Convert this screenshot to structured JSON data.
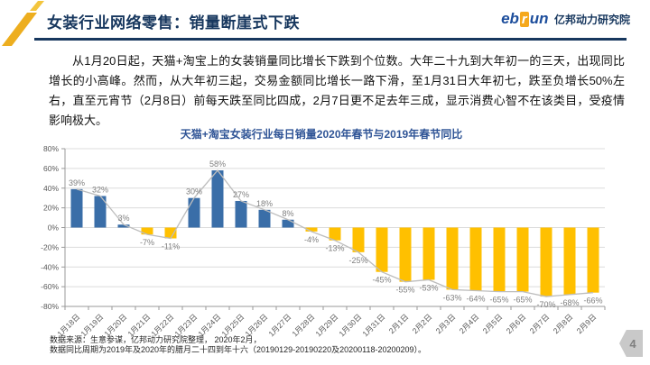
{
  "header": {
    "title": "女装行业网络零售：销量断崖式下跌",
    "logo": {
      "eb": "eb",
      "r": "r",
      "un": "un",
      "cn": "亿邦动力研究院"
    }
  },
  "body_paragraph": "从1月20日起，天猫+淘宝上的女装销量同比增长下跌到个位数。大年二十九到大年初一的三天，出现同比增长的小高峰。然而，从大年初三起，交易金额同比增长一路下滑，至1月31日大年初七，跌至负增长50%左右，直至元宵节（2月8日）前每天跌至同比四成，2月7日更不足去年三成，显示消费心智不在该类目，受疫情影响极大。",
  "chart_data": {
    "type": "bar",
    "title": "天猫+淘宝女装行业每日销量2020年春节与2019年春节同比",
    "categories": [
      "1月18日",
      "1月19日",
      "1月20日",
      "1月21日",
      "1月22日",
      "1月23日",
      "1月24日",
      "1月25日",
      "1月26日",
      "1月27日",
      "1月28日",
      "1月29日",
      "1月30日",
      "1月31日",
      "2月1日",
      "2月2日",
      "2月3日",
      "2月4日",
      "2月5日",
      "2月6日",
      "2月7日",
      "2月8日",
      "2月9日"
    ],
    "values": [
      39,
      32,
      3,
      -7,
      -11,
      30,
      58,
      27,
      18,
      8,
      -4,
      -13,
      -25,
      -45,
      -55,
      -53,
      -63,
      -64,
      -65,
      -65,
      -70,
      -68,
      -66
    ],
    "xlabel": "",
    "ylabel": "",
    "ylim": [
      -80,
      80
    ],
    "ytick_step": 20,
    "ytick_suffix": "%",
    "grid": true,
    "legend": "none",
    "positive_color": "#3A6EA8",
    "negative_color": "#FFC000",
    "line_color": "#BDBDBD",
    "grid_color": "#DCDCDC",
    "axis_color": "#999999",
    "data_label_color": "#7F7F7F",
    "tick_label_color": "#595959"
  },
  "footer": {
    "line1": "数据来源：生意参谋，亿邦动力研究院整理， 2020年2月，",
    "line2": "数据同比周期为2019年及2020年的腊月二十四到年十六（20190129-20190220及20200118-20200209）。"
  },
  "page_number": "4",
  "colors": {
    "accent_navy": "#17375E",
    "chart_title_blue": "#2F5496",
    "logo_orange": "#F5A81C",
    "badge_gray": "#C9C9C9"
  }
}
